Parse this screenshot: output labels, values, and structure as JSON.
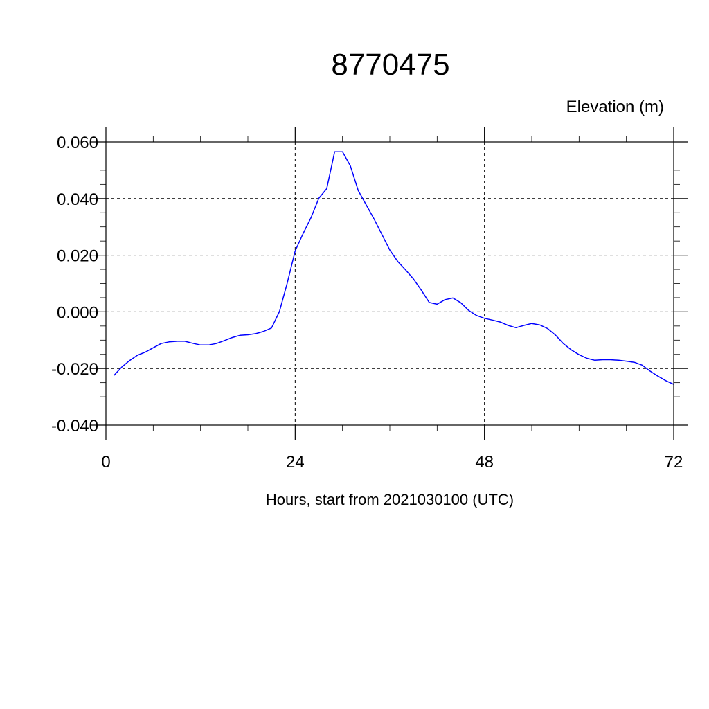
{
  "chart_data": {
    "type": "line",
    "title": "8770475",
    "ylabel": "Elevation (m)",
    "xlabel": "Hours, start from 2021030100 (UTC)",
    "xlim": [
      0,
      72
    ],
    "ylim": [
      -0.04,
      0.06
    ],
    "x_ticks": [
      0,
      24,
      48,
      72
    ],
    "x_tick_labels": [
      "0",
      "24",
      "48",
      "72"
    ],
    "y_ticks": [
      -0.04,
      -0.02,
      0.0,
      0.02,
      0.04,
      0.06
    ],
    "y_tick_labels": [
      "-0.040",
      "-0.020",
      "0.000",
      "0.020",
      "0.040",
      "0.060"
    ],
    "grid": true,
    "series": [
      {
        "color": "#0000ff",
        "x": [
          1,
          2,
          3,
          4,
          5,
          6,
          7,
          8,
          9,
          10,
          11,
          12,
          13,
          14,
          15,
          16,
          17,
          18,
          19,
          20,
          21,
          22,
          23,
          24,
          25,
          26,
          27,
          28,
          29,
          30,
          31,
          32,
          33,
          34,
          35,
          36,
          37,
          38,
          39,
          40,
          41,
          42,
          43,
          44,
          45,
          46,
          47,
          48,
          49,
          50,
          51,
          52,
          53,
          54,
          55,
          56,
          57,
          58,
          59,
          60,
          61,
          62,
          63,
          64,
          65,
          66,
          67,
          68,
          69,
          70,
          71,
          72
        ],
        "y": [
          -0.0225,
          -0.0195,
          -0.0172,
          -0.0153,
          -0.0142,
          -0.0127,
          -0.0112,
          -0.0106,
          -0.0104,
          -0.0104,
          -0.0111,
          -0.0117,
          -0.0117,
          -0.0112,
          -0.0102,
          -0.0091,
          -0.0083,
          -0.0081,
          -0.0077,
          -0.0069,
          -0.0057,
          0.0001,
          0.0102,
          0.0215,
          0.0276,
          0.0332,
          0.0401,
          0.0435,
          0.0565,
          0.0565,
          0.0515,
          0.0428,
          0.0378,
          0.0328,
          0.0273,
          0.0218,
          0.0178,
          0.0148,
          0.0116,
          0.0076,
          0.0033,
          0.0027,
          0.0043,
          0.0049,
          0.0032,
          0.0005,
          -0.0013,
          -0.0023,
          -0.0029,
          -0.0036,
          -0.0048,
          -0.0056,
          -0.0048,
          -0.0041,
          -0.0046,
          -0.0059,
          -0.0082,
          -0.0112,
          -0.0134,
          -0.0151,
          -0.0164,
          -0.0171,
          -0.0169,
          -0.0169,
          -0.0171,
          -0.0174,
          -0.0178,
          -0.0188,
          -0.0209,
          -0.0227,
          -0.0243,
          -0.0256
        ]
      }
    ]
  }
}
